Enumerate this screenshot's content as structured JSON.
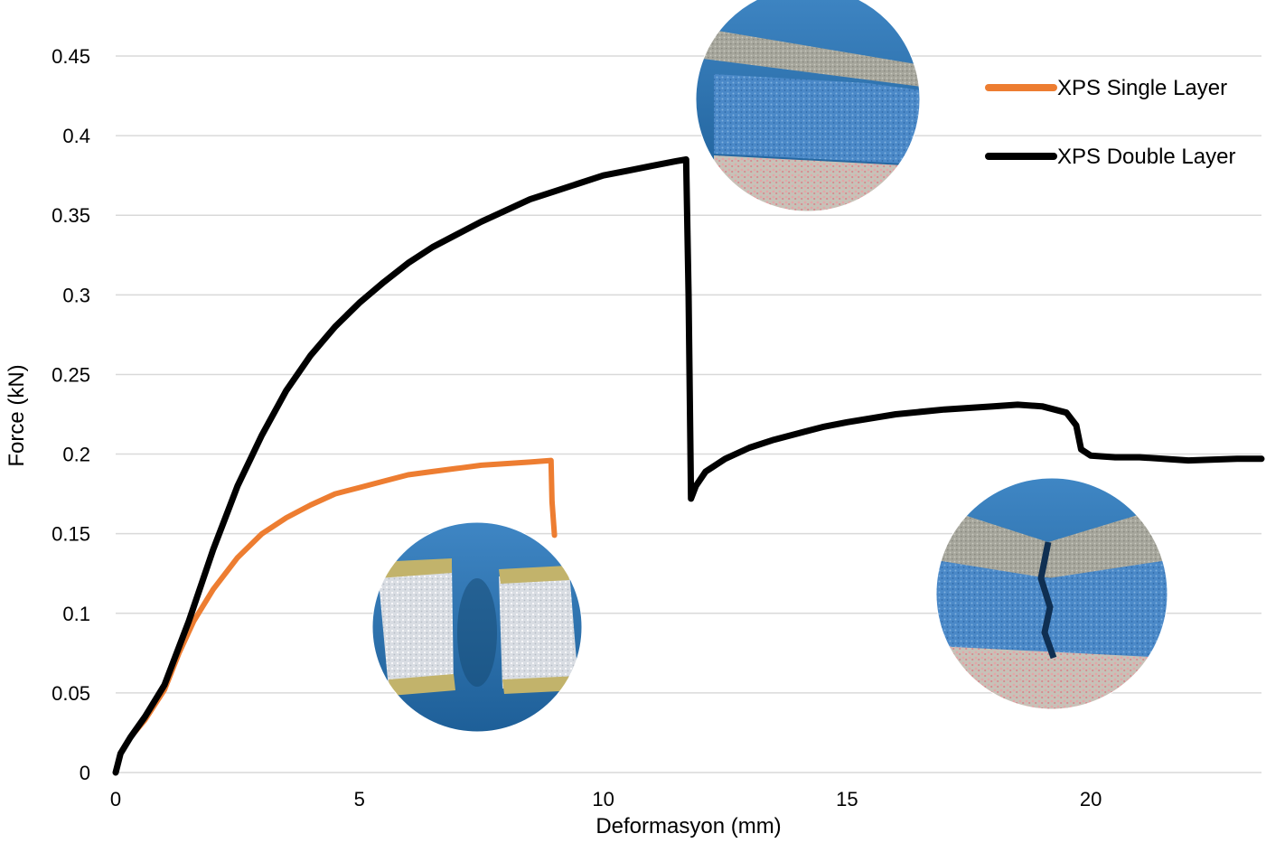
{
  "chart_data": {
    "type": "line",
    "title": "",
    "xlabel": "Deformasyon (mm)",
    "ylabel": "Force (kN)",
    "xlim": [
      0,
      23.5
    ],
    "ylim": [
      0,
      0.45
    ],
    "xticks": [
      0,
      5,
      10,
      15,
      20
    ],
    "yticks": [
      0,
      0.05,
      0.1,
      0.15,
      0.2,
      0.25,
      0.3,
      0.35,
      0.4,
      0.45
    ],
    "xtick_labels": [
      "0",
      "5",
      "10",
      "15",
      "20"
    ],
    "ytick_labels": [
      "0",
      "0.05",
      "0.1",
      "0.15",
      "0.2",
      "0.25",
      "0.3",
      "0.35",
      "0.4",
      "0.45"
    ],
    "grid": "horizontal",
    "legend": "top-right",
    "series": [
      {
        "name": "XPS Single Layer",
        "color": "#ed7d31",
        "x": [
          0,
          0.1,
          0.3,
          0.6,
          1.0,
          1.3,
          1.6,
          2.0,
          2.5,
          3.0,
          3.5,
          4.0,
          4.5,
          5.0,
          5.5,
          6.0,
          6.5,
          7.0,
          7.5,
          8.0,
          8.5,
          8.93,
          8.95,
          9.0
        ],
        "y": [
          0,
          0.012,
          0.022,
          0.033,
          0.052,
          0.075,
          0.095,
          0.115,
          0.135,
          0.15,
          0.16,
          0.168,
          0.175,
          0.179,
          0.183,
          0.187,
          0.189,
          0.191,
          0.193,
          0.194,
          0.195,
          0.196,
          0.17,
          0.149
        ]
      },
      {
        "name": "XPS Double Layer",
        "color": "#000000",
        "x": [
          0,
          0.1,
          0.3,
          0.6,
          1.0,
          1.5,
          2.0,
          2.5,
          3.0,
          3.5,
          4.0,
          4.5,
          5.0,
          5.5,
          6.0,
          6.5,
          7.0,
          7.5,
          8.0,
          8.5,
          9.0,
          9.5,
          10.0,
          10.5,
          11.0,
          11.5,
          11.7,
          11.75,
          11.8,
          11.9,
          12.1,
          12.5,
          13.0,
          13.5,
          14.0,
          14.5,
          15.0,
          16.0,
          17.0,
          18.0,
          18.5,
          19.0,
          19.5,
          19.7,
          19.8,
          20.0,
          20.5,
          21.0,
          22.0,
          23.0,
          23.5
        ],
        "y": [
          0,
          0.012,
          0.022,
          0.035,
          0.055,
          0.095,
          0.14,
          0.18,
          0.212,
          0.24,
          0.262,
          0.28,
          0.295,
          0.308,
          0.32,
          0.33,
          0.338,
          0.346,
          0.353,
          0.36,
          0.365,
          0.37,
          0.375,
          0.378,
          0.381,
          0.384,
          0.385,
          0.3,
          0.172,
          0.18,
          0.189,
          0.197,
          0.204,
          0.209,
          0.213,
          0.217,
          0.22,
          0.225,
          0.228,
          0.23,
          0.231,
          0.23,
          0.226,
          0.218,
          0.203,
          0.199,
          0.198,
          0.198,
          0.196,
          0.197,
          0.197
        ]
      }
    ],
    "photos": [
      "single-layer-specimen-photo",
      "double-layer-surface-photo",
      "double-layer-crack-photo"
    ]
  }
}
